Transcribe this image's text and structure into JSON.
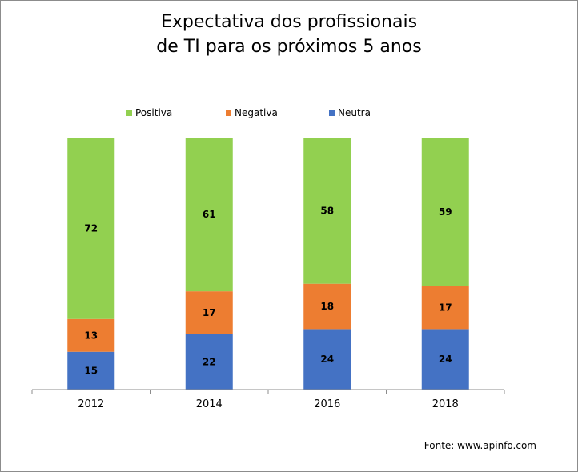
{
  "chart_data": {
    "type": "bar",
    "stacked": true,
    "title": [
      "Expectativa dos profissionais",
      "de TI para os próximos 5 anos"
    ],
    "categories": [
      "2012",
      "2014",
      "2016",
      "2018"
    ],
    "series": [
      {
        "name": "Neutra",
        "values": [
          15,
          22,
          24,
          24
        ],
        "color": "#4472c4"
      },
      {
        "name": "Negativa",
        "values": [
          13,
          17,
          18,
          17
        ],
        "color": "#ed7d31"
      },
      {
        "name": "Positiva",
        "values": [
          72,
          61,
          58,
          59
        ],
        "color": "#92d050"
      }
    ],
    "legend_order": [
      "Positiva",
      "Negativa",
      "Neutra"
    ],
    "legend_position": "top",
    "ylim": [
      0,
      100
    ],
    "grid": false,
    "xlabel": "",
    "ylabel": ""
  },
  "source": "Fonte: www.apinfo.com"
}
